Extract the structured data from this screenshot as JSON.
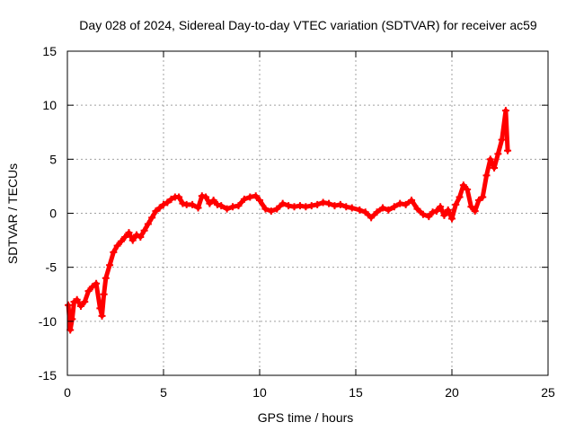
{
  "chart_data": {
    "type": "scatter",
    "title": "Day 028 of 2024, Sidereal Day-to-day VTEC variation (SDTVAR) for receiver ac59",
    "xlabel": "GPS time / hours",
    "ylabel": "SDTVAR / TECUs",
    "xlim": [
      0,
      25
    ],
    "ylim": [
      -15,
      15
    ],
    "xticks": [
      0,
      5,
      10,
      15,
      20,
      25
    ],
    "yticks": [
      -15,
      -10,
      -5,
      0,
      5,
      10,
      15
    ],
    "grid": true,
    "marker": "+",
    "series": [
      {
        "name": "SDTVAR",
        "color": "#ff0000",
        "x": [
          0.05,
          0.15,
          0.25,
          0.35,
          0.5,
          0.7,
          0.9,
          1.1,
          1.3,
          1.5,
          1.7,
          1.8,
          1.9,
          2.0,
          2.2,
          2.4,
          2.6,
          2.8,
          3.0,
          3.2,
          3.4,
          3.6,
          3.8,
          4.0,
          4.2,
          4.4,
          4.6,
          4.8,
          5.0,
          5.2,
          5.4,
          5.6,
          5.8,
          6.0,
          6.2,
          6.5,
          6.8,
          7.0,
          7.2,
          7.4,
          7.6,
          7.8,
          8.0,
          8.3,
          8.6,
          8.9,
          9.2,
          9.5,
          9.8,
          10.0,
          10.3,
          10.6,
          10.9,
          11.2,
          11.5,
          11.8,
          12.1,
          12.4,
          12.7,
          13.0,
          13.3,
          13.6,
          13.9,
          14.2,
          14.5,
          14.8,
          15.2,
          15.5,
          15.8,
          16.1,
          16.4,
          16.7,
          17.0,
          17.3,
          17.6,
          17.9,
          18.2,
          18.5,
          18.8,
          19.0,
          19.2,
          19.4,
          19.6,
          19.8,
          20.0,
          20.2,
          20.4,
          20.6,
          20.8,
          21.0,
          21.2,
          21.4,
          21.6,
          21.8,
          22.0,
          22.2,
          22.4,
          22.6,
          22.8,
          22.9
        ],
        "values": [
          -8.5,
          -10.8,
          -9.8,
          -8.2,
          -8.0,
          -8.6,
          -8.2,
          -7.2,
          -6.8,
          -6.5,
          -8.8,
          -9.5,
          -7.5,
          -6.0,
          -4.8,
          -3.6,
          -3.0,
          -2.6,
          -2.2,
          -1.8,
          -2.5,
          -2.0,
          -2.2,
          -1.6,
          -1.0,
          -0.4,
          0.2,
          0.5,
          0.8,
          1.0,
          1.3,
          1.5,
          1.5,
          0.9,
          0.8,
          0.8,
          0.5,
          1.6,
          1.5,
          0.9,
          1.2,
          0.8,
          0.7,
          0.4,
          0.6,
          0.7,
          1.3,
          1.5,
          1.6,
          1.2,
          0.4,
          0.2,
          0.4,
          0.9,
          0.7,
          0.6,
          0.7,
          0.6,
          0.7,
          0.8,
          1.0,
          0.9,
          0.7,
          0.8,
          0.6,
          0.5,
          0.3,
          0.1,
          -0.4,
          0.1,
          0.5,
          0.3,
          0.6,
          0.9,
          0.8,
          1.2,
          0.4,
          -0.1,
          -0.3,
          0.1,
          0.2,
          0.6,
          -0.2,
          0.3,
          -0.5,
          0.8,
          1.5,
          2.6,
          2.2,
          0.6,
          0.2,
          1.2,
          1.5,
          3.5,
          5.0,
          4.2,
          5.5,
          6.8,
          9.5,
          5.8
        ]
      }
    ]
  }
}
